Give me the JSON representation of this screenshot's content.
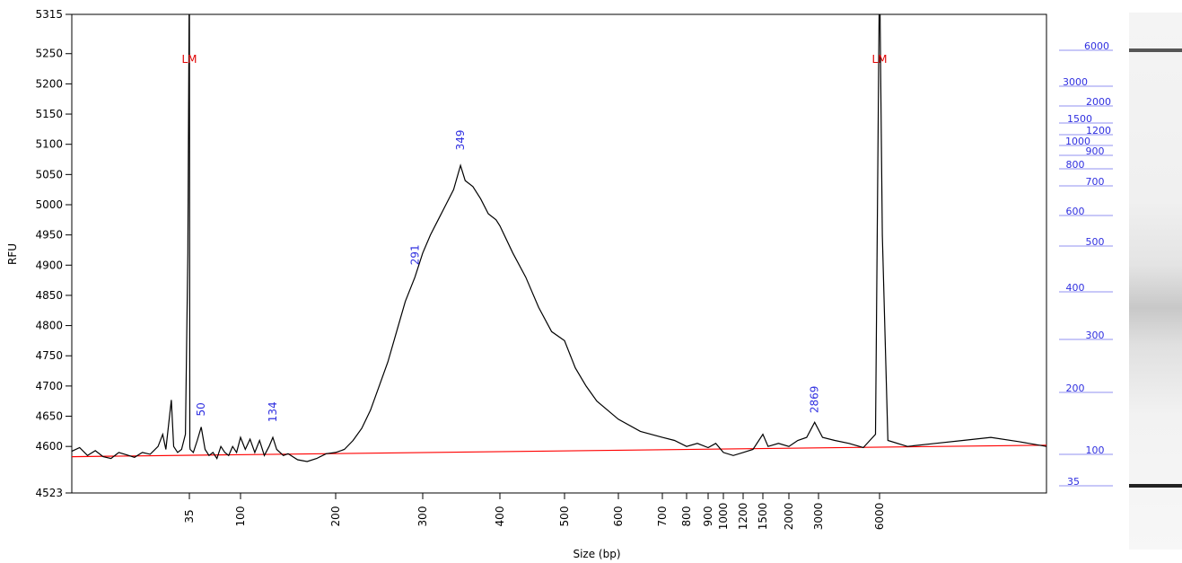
{
  "chart_data": {
    "type": "line",
    "y_label": "RFU",
    "x_label": "Size (bp)",
    "ylim": [
      4523,
      5315
    ],
    "yticks": [
      4523,
      4600,
      4650,
      4700,
      4750,
      4800,
      4850,
      4900,
      4950,
      5000,
      5050,
      5100,
      5150,
      5200,
      5250,
      5315
    ],
    "xlim": [
      20,
      12000
    ],
    "xticks": [
      35,
      100,
      200,
      300,
      400,
      500,
      600,
      700,
      800,
      900,
      1000,
      1200,
      1500,
      2000,
      3000,
      6000
    ],
    "series": [
      {
        "color": "#000000",
        "x": [
          20,
          21,
          22,
          23,
          24,
          25,
          26,
          27,
          28,
          29,
          30,
          31,
          31.6,
          32,
          32.7,
          33,
          33.5,
          34,
          34.5,
          34.8,
          35,
          35.3,
          35.6,
          36,
          40,
          45,
          50,
          55,
          60,
          65,
          70,
          75,
          80,
          85,
          90,
          95,
          100,
          105,
          110,
          115,
          120,
          125,
          130,
          134,
          138,
          145,
          150,
          160,
          170,
          180,
          190,
          200,
          210,
          220,
          230,
          240,
          250,
          260,
          270,
          280,
          291,
          300,
          310,
          320,
          330,
          340,
          349,
          355,
          365,
          375,
          385,
          395,
          400,
          420,
          440,
          460,
          480,
          500,
          520,
          540,
          560,
          580,
          600,
          650,
          700,
          750,
          800,
          850,
          900,
          950,
          1000,
          1100,
          1200,
          1350,
          1500,
          1600,
          1800,
          2000,
          2300,
          2600,
          2869,
          3200,
          3800,
          4500,
          5200,
          5800,
          5900,
          6000,
          6100,
          6300,
          7000,
          8000,
          9000,
          10000,
          11000,
          12000
        ],
        "values": [
          4592,
          4598,
          4585,
          4593,
          4583,
          4580,
          4590,
          4586,
          4582,
          4590,
          4587,
          4600,
          4620,
          4595,
          4677,
          4600,
          4590,
          4595,
          4620,
          4920,
          5400,
          4920,
          4600,
          4595,
          4590,
          4610,
          4632,
          4595,
          4585,
          4590,
          4580,
          4600,
          4590,
          4585,
          4600,
          4590,
          4615,
          4595,
          4612,
          4590,
          4610,
          4585,
          4600,
          4615,
          4595,
          4585,
          4588,
          4578,
          4575,
          4580,
          4588,
          4590,
          4595,
          4610,
          4630,
          4660,
          4700,
          4740,
          4790,
          4840,
          4880,
          4920,
          4950,
          4975,
          5000,
          5025,
          5065,
          5040,
          5030,
          5010,
          4985,
          4975,
          4965,
          4920,
          4880,
          4830,
          4790,
          4775,
          4730,
          4700,
          4675,
          4660,
          4645,
          4625,
          4615,
          4610,
          4600,
          4605,
          4598,
          4605,
          4590,
          4585,
          4590,
          4595,
          4620,
          4600,
          4605,
          4600,
          4610,
          4615,
          4640,
          4615,
          4610,
          4605,
          4598,
          4620,
          5000,
          5400,
          4950,
          4610,
          4600,
          4605,
          4610,
          4615,
          4608,
          4600
        ]
      },
      {
        "color": "#ff0000",
        "x": [
          20,
          12000
        ],
        "values": [
          4583,
          4602
        ]
      }
    ],
    "annotations": [
      {
        "label": "LM",
        "x": 35,
        "y": 5235,
        "color": "#e00000",
        "rotate": false
      },
      {
        "label": "LM",
        "x": 6000,
        "y": 5235,
        "color": "#e00000",
        "rotate": false
      },
      {
        "label": "50",
        "x": 50,
        "y": 4650,
        "color": "#3030e0",
        "rotate": true
      },
      {
        "label": "134",
        "x": 134,
        "y": 4640,
        "color": "#3030e0",
        "rotate": true
      },
      {
        "label": "291",
        "x": 291,
        "y": 4900,
        "color": "#3030e0",
        "rotate": true
      },
      {
        "label": "349",
        "x": 349,
        "y": 5090,
        "color": "#3030e0",
        "rotate": true
      },
      {
        "label": "2869",
        "x": 2869,
        "y": 4655,
        "color": "#3030e0",
        "rotate": true
      }
    ],
    "ladder": [
      6000,
      3000,
      2000,
      1500,
      1200,
      1000,
      900,
      800,
      700,
      600,
      500,
      400,
      300,
      200,
      100,
      35
    ]
  }
}
